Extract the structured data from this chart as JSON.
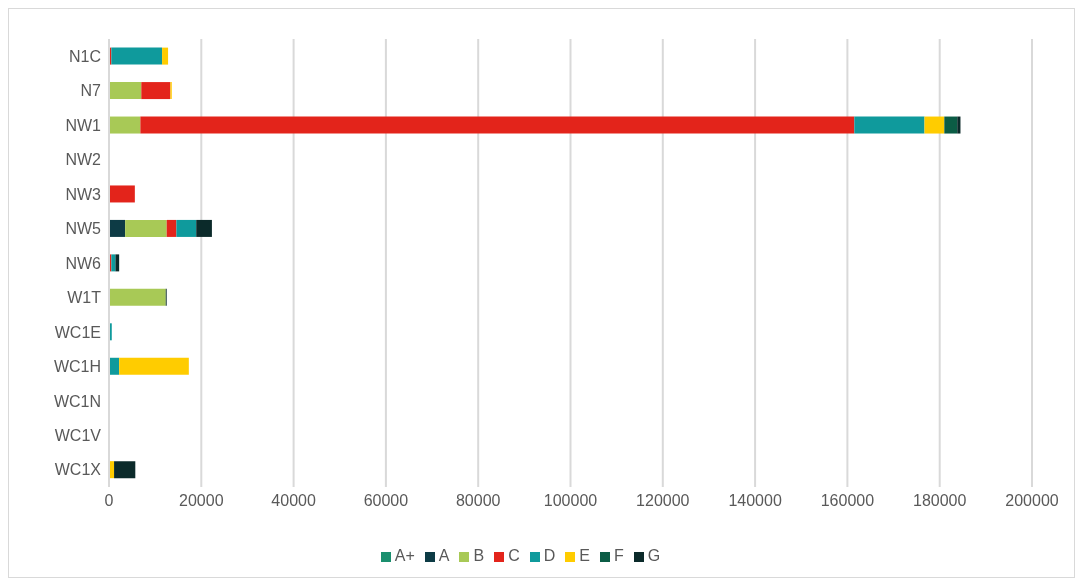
{
  "chart_data": {
    "type": "bar",
    "orientation": "horizontal",
    "stacked": true,
    "categories": [
      "N1C",
      "N7",
      "NW1",
      "NW2",
      "NW3",
      "NW5",
      "NW6",
      "W1T",
      "WC1E",
      "WC1H",
      "WC1N",
      "WC1V",
      "WC1X"
    ],
    "series": [
      {
        "name": "A+",
        "color": "#1a8f6e",
        "values": [
          null,
          null,
          null,
          null,
          null,
          null,
          null,
          null,
          null,
          null,
          null,
          null,
          null
        ]
      },
      {
        "name": "A",
        "color": "#0d3b45",
        "values": [
          null,
          null,
          null,
          null,
          null,
          3500,
          null,
          null,
          null,
          null,
          null,
          null,
          null
        ]
      },
      {
        "name": "B",
        "color": "#a8c956",
        "values": [
          null,
          7000,
          6800,
          null,
          null,
          9000,
          null,
          12300,
          null,
          null,
          null,
          null,
          null
        ]
      },
      {
        "name": "C",
        "color": "#e3241b",
        "values": [
          500,
          6300,
          154700,
          null,
          5600,
          2100,
          500,
          null,
          null,
          null,
          null,
          null,
          null
        ]
      },
      {
        "name": "D",
        "color": "#0f9a9c",
        "values": [
          11000,
          null,
          15200,
          null,
          null,
          4300,
          900,
          null,
          600,
          2200,
          null,
          null,
          null
        ]
      },
      {
        "name": "E",
        "color": "#ffcc00",
        "values": [
          1300,
          300,
          4300,
          null,
          null,
          null,
          null,
          null,
          null,
          15100,
          null,
          null,
          1100
        ]
      },
      {
        "name": "F",
        "color": "#0b5c45",
        "values": [
          null,
          null,
          2800,
          null,
          null,
          null,
          null,
          null,
          null,
          null,
          null,
          null,
          null
        ]
      },
      {
        "name": "G",
        "color": "#0b2a2a",
        "values": [
          null,
          null,
          700,
          null,
          null,
          3400,
          800,
          200,
          null,
          null,
          null,
          null,
          4600
        ]
      }
    ],
    "xlim": [
      0,
      200000
    ],
    "xticks": [
      0,
      20000,
      40000,
      60000,
      80000,
      100000,
      120000,
      140000,
      160000,
      180000,
      200000
    ],
    "grid": "x",
    "legend": "bottom"
  }
}
